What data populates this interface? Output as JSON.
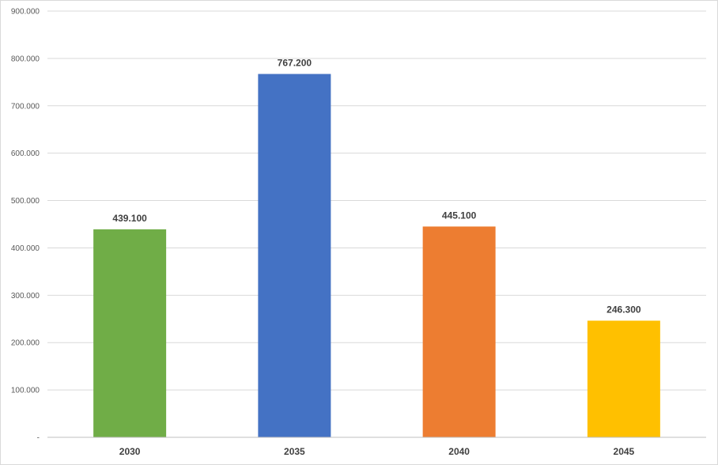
{
  "chart_data": {
    "type": "bar",
    "title": "",
    "xlabel": "",
    "ylabel": "",
    "categories": [
      "2030",
      "2035",
      "2040",
      "2045"
    ],
    "values": [
      439100,
      767200,
      445100,
      246300
    ],
    "data_labels": [
      "439.100",
      "767.200",
      "445.100",
      "246.300"
    ],
    "bar_colors": [
      "#70ad47",
      "#4472c4",
      "#ed7d31",
      "#ffc000"
    ],
    "ylim": [
      0,
      900000
    ],
    "y_ticks": [
      0,
      100000,
      200000,
      300000,
      400000,
      500000,
      600000,
      700000,
      800000,
      900000
    ],
    "y_tick_labels": [
      "-",
      "100.000",
      "200.000",
      "300.000",
      "400.000",
      "500.000",
      "600.000",
      "700.000",
      "800.000",
      "900.000"
    ],
    "grid": true,
    "legend": "none"
  }
}
